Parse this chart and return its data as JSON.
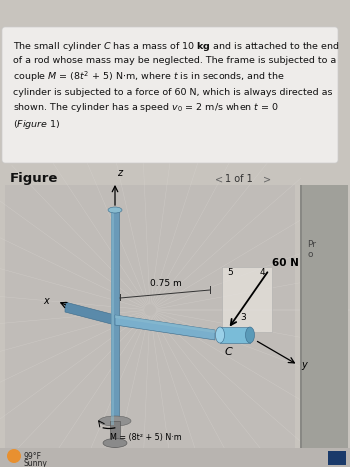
{
  "bg_color": "#c8c4be",
  "text_box_color": "#ededea",
  "figure_label": "Figure",
  "page_label": "1 of 1",
  "dim_label": "0.75 m",
  "force_label": "60 N",
  "moment_label": "M = (8t² + 5) N·m",
  "weather_label": "99°F",
  "weather_label2": "Sunny",
  "frame_color": "#6a9ab8",
  "frame_dark": "#3a6a8a",
  "frame_light": "#8abcd0",
  "cylinder_color": "#7aafcc",
  "base_color": "#909090",
  "base_dark": "#606060",
  "text_color": "#111111",
  "sidebar_color": "#a0a09a",
  "status_color": "#b8b4b0",
  "ray_color": "#d8d4d0",
  "fig_area_color": "#c0bcb8",
  "white_panel_color": "#eeecea",
  "white_panel_border": "#cccccc",
  "tri_bg": "#e8e4de",
  "pro_color": "#444444",
  "arrow_color": "#111111",
  "dim_line_color": "#333333"
}
